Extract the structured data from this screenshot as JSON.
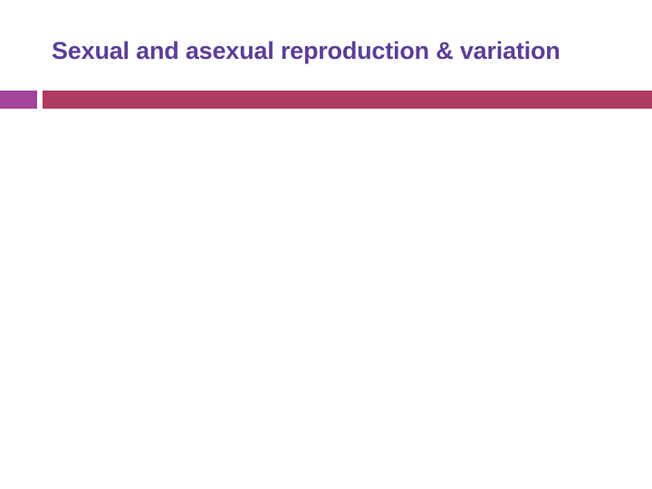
{
  "slide": {
    "title": "Sexual and asexual reproduction & variation"
  },
  "colors": {
    "title": "#5B3E97",
    "accent_segment": "#A2449B",
    "accent_bar": "#AF3A64",
    "background": "#FFFFFF"
  }
}
